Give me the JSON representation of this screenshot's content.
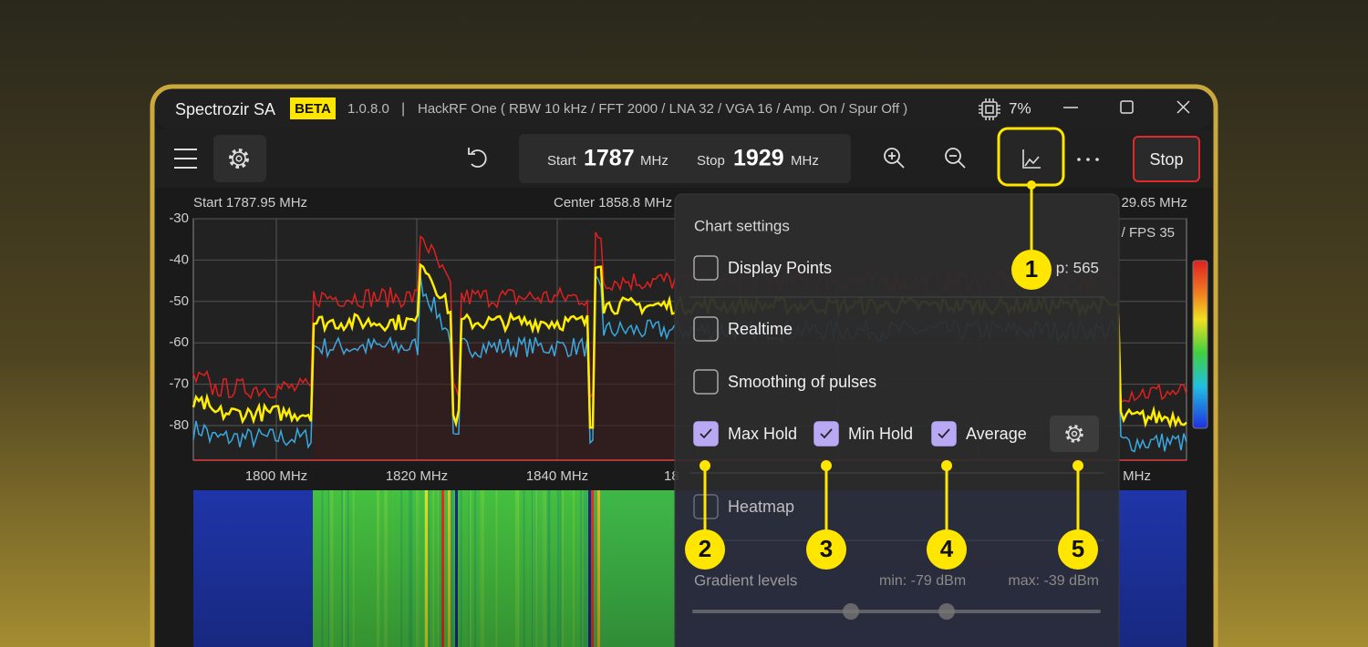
{
  "title_bar": {
    "app_name": "Spectrozir SA",
    "badge": "BETA",
    "version": "1.0.8.0",
    "separator": "|",
    "device": "HackRF One  ( RBW 10 kHz / FFT 2000 / LNA 32 / VGA 16 / Amp. On / Spur Off )",
    "cpu": "7%"
  },
  "toolbar": {
    "start_label": "Start",
    "start_value": "1787",
    "start_unit": "MHz",
    "stop_label": "Stop",
    "stop_value": "1929",
    "stop_unit": "MHz",
    "stop_button": "Stop"
  },
  "chart": {
    "start": "Start 1787.95 MHz",
    "center": "Center 1858.8 MHz",
    "end": "29.65 MHz",
    "fps": "/ FPS 35",
    "yticks": [
      -30,
      -40,
      -50,
      -60,
      -70,
      -80
    ],
    "xticks": [
      "1800 MHz",
      "1820 MHz",
      "1840 MHz",
      "18",
      "MHz"
    ]
  },
  "panel": {
    "title": "Chart settings",
    "display_points": "Display Points",
    "step": "p: 565",
    "realtime": "Realtime",
    "smoothing": "Smoothing of pulses",
    "max_hold": "Max Hold",
    "min_hold": "Min Hold",
    "average": "Average",
    "heatmap": "Heatmap",
    "gradient_levels": "Gradient levels",
    "gradient_min": "min: -79 dBm",
    "gradient_max": "max: -39 dBm"
  },
  "callouts": [
    "1",
    "2",
    "3",
    "4",
    "5"
  ]
}
